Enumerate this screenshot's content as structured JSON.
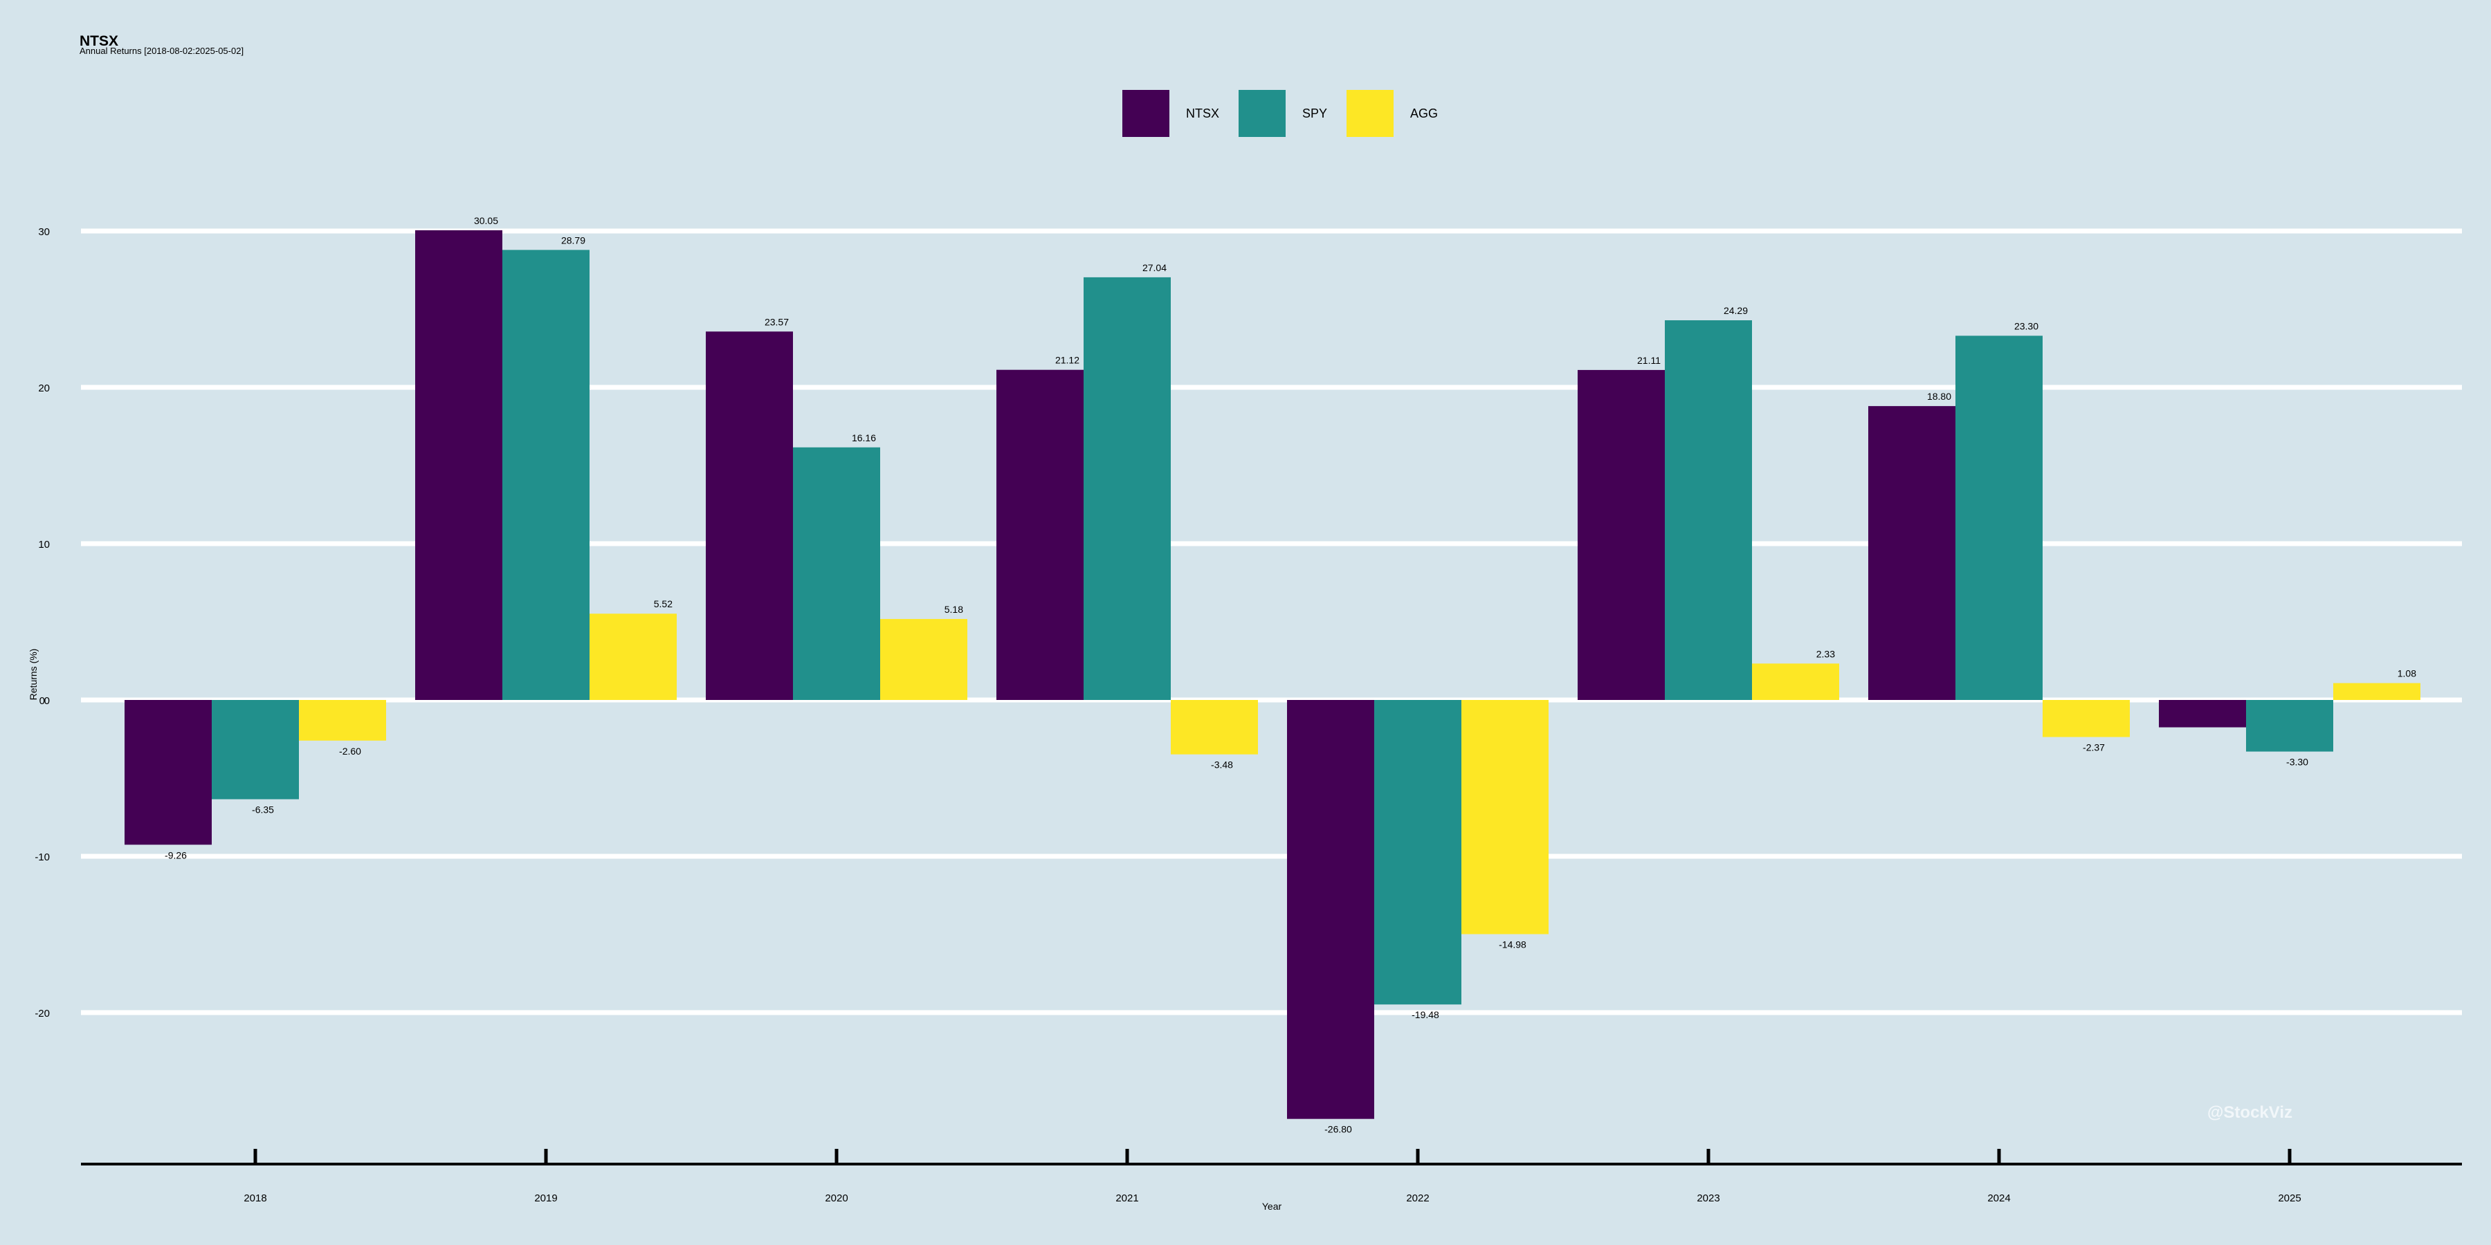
{
  "title": "NTSX",
  "subtitle": "Annual Returns [2018-08-02:2025-05-02]",
  "watermark": "@StockViz",
  "chart_data": {
    "type": "bar",
    "title": "NTSX",
    "subtitle": "Annual Returns [2018-08-02:2025-05-02]",
    "xlabel": "Year",
    "ylabel": "Returns (%)",
    "ylim": [
      -30,
      30
    ],
    "yticks": [
      -20,
      -10,
      0,
      10,
      20,
      30
    ],
    "grid": true,
    "legend_position": "top-center",
    "categories": [
      "2018",
      "2019",
      "2020",
      "2021",
      "2022",
      "2023",
      "2024",
      "2025"
    ],
    "series": [
      {
        "name": "NTSX",
        "color": "#440154",
        "values": [
          -9.26,
          30.05,
          23.57,
          21.12,
          -26.8,
          21.11,
          18.8,
          -1.75
        ],
        "labels": [
          "-9.26",
          "30.05",
          "23.57",
          "21.12",
          "-26.80",
          "21.11",
          "18.80",
          ""
        ]
      },
      {
        "name": "SPY",
        "color": "#21908c",
        "values": [
          -6.35,
          28.79,
          16.16,
          27.04,
          -19.48,
          24.29,
          23.3,
          -3.3
        ],
        "labels": [
          "-6.35",
          "28.79",
          "16.16",
          "27.04",
          "-19.48",
          "24.29",
          "23.30",
          "-3.30"
        ]
      },
      {
        "name": "AGG",
        "color": "#fde725",
        "values": [
          -2.6,
          5.52,
          5.18,
          -3.48,
          -14.98,
          2.33,
          -2.37,
          1.08
        ],
        "labels": [
          "-2.60",
          "5.52",
          "5.18",
          "-3.48",
          "-14.98",
          "2.33",
          "-2.37",
          "1.08"
        ]
      }
    ]
  }
}
